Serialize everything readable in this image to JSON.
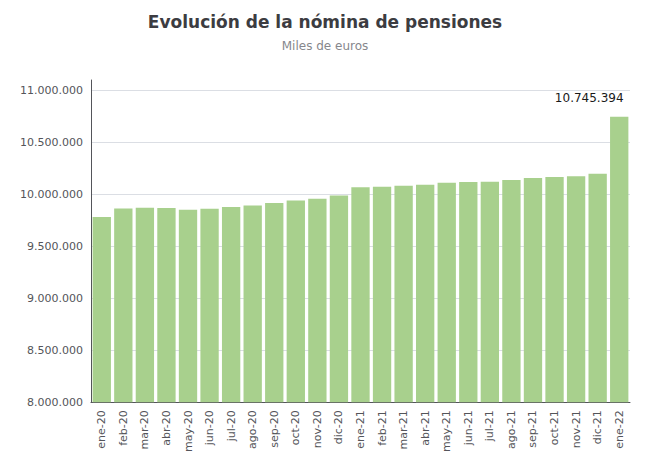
{
  "chart_data": {
    "type": "bar",
    "title": "Evolución de la nómina de pensiones",
    "subtitle": "Miles de euros",
    "categories": [
      "ene-20",
      "feb-20",
      "mar-20",
      "abr-20",
      "may-20",
      "jun-20",
      "jul-20",
      "ago-20",
      "sep-20",
      "oct-20",
      "nov-20",
      "dic-20",
      "ene-21",
      "feb-21",
      "mar-21",
      "abr-21",
      "may-21",
      "jun-21",
      "jul-21",
      "ago-21",
      "sep-21",
      "oct-21",
      "nov-21",
      "dic-21",
      "ene-22"
    ],
    "values": [
      9782000,
      9865000,
      9870000,
      9868000,
      9852000,
      9862000,
      9878000,
      9893000,
      9918000,
      9942000,
      9957000,
      9988000,
      10068000,
      10073000,
      10082000,
      10092000,
      10112000,
      10118000,
      10122000,
      10138000,
      10158000,
      10168000,
      10173000,
      10198000,
      10745394
    ],
    "color": "#a8d08d",
    "ylim": [
      8000000,
      11100000
    ],
    "yticks": [
      {
        "value": 8000000,
        "label": "8.000.000"
      },
      {
        "value": 8500000,
        "label": "8.500.000"
      },
      {
        "value": 9000000,
        "label": "9.000.000"
      },
      {
        "value": 9500000,
        "label": "9.500.000"
      },
      {
        "value": 10000000,
        "label": "10.000.000"
      },
      {
        "value": 10500000,
        "label": "10.500.000"
      },
      {
        "value": 11000000,
        "label": "11.000.000"
      }
    ],
    "grid": true,
    "annotations": [
      {
        "text": "10.745.394",
        "x": "ene-22",
        "y": 10745394
      }
    ]
  }
}
